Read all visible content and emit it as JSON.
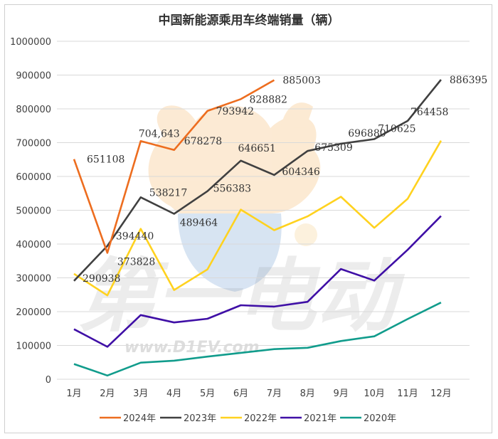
{
  "chart_data": {
    "type": "line",
    "title": "中国新能源乘用车终端销量（辆）",
    "categories": [
      "1月",
      "2月",
      "3月",
      "4月",
      "5月",
      "6月",
      "7月",
      "8月",
      "9月",
      "10月",
      "11月",
      "12月"
    ],
    "ylim": [
      0,
      1000000
    ],
    "yticks": [
      0,
      100000,
      200000,
      300000,
      400000,
      500000,
      600000,
      700000,
      800000,
      900000,
      1000000
    ],
    "grid": true,
    "legend_position": "bottom",
    "series": [
      {
        "name": "2024年",
        "color": "#ED6D1F",
        "values": [
          651108,
          373828,
          704643,
          678278,
          793942,
          828882,
          885003,
          null,
          null,
          null,
          null,
          null
        ],
        "labels": [
          "651108",
          "373828",
          "704,643",
          "678278",
          "793942",
          "828882",
          "885003",
          "",
          "",
          "",
          "",
          ""
        ]
      },
      {
        "name": "2023年",
        "color": "#404040",
        "values": [
          290938,
          394440,
          538217,
          489464,
          556383,
          646651,
          604346,
          675309,
          696880,
          710625,
          764458,
          886395
        ],
        "labels": [
          "290938",
          "394440",
          "538217",
          "489464",
          "556383",
          "646651",
          "604346",
          "675309",
          "696880",
          "710625",
          "764458",
          "886395"
        ]
      },
      {
        "name": "2022年",
        "color": "#FFD21F",
        "values": [
          312000,
          248000,
          445000,
          264000,
          325000,
          502000,
          441000,
          482000,
          540000,
          448000,
          534000,
          706000
        ],
        "labels": [
          "",
          "",
          "",
          "",
          "",
          "",
          "",
          "",
          "",
          "",
          "",
          ""
        ]
      },
      {
        "name": "2021年",
        "color": "#3F0FA6",
        "values": [
          148000,
          96000,
          190000,
          168000,
          179000,
          219000,
          215000,
          229000,
          326000,
          292000,
          383000,
          483000
        ],
        "labels": [
          "",
          "",
          "",
          "",
          "",
          "",
          "",
          "",
          "",
          "",
          "",
          ""
        ]
      },
      {
        "name": "2020年",
        "color": "#119C8C",
        "values": [
          45000,
          11000,
          49000,
          55000,
          67000,
          78000,
          89000,
          93000,
          113000,
          127000,
          178000,
          227000
        ],
        "labels": [
          "",
          "",
          "",
          "",
          "",
          "",
          "",
          "",
          "",
          "",
          "",
          ""
        ]
      }
    ]
  },
  "watermark": {
    "text_cn": "第一电动",
    "url": "www.D1EV.com"
  }
}
